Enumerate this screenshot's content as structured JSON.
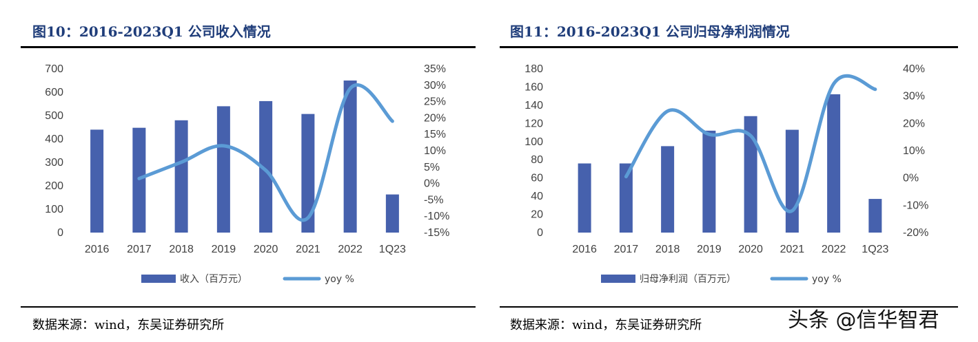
{
  "colors": {
    "bar": "#4661ad",
    "line": "#5b9bd5",
    "title": "#1f3d7a"
  },
  "panels": [
    {
      "title": "图10：2016-2023Q1 公司收入情况",
      "source": "数据来源：wind，东吴证券研究所"
    },
    {
      "title": "图11：2016-2023Q1 公司归母净利润情况",
      "source": "数据来源：wind，东吴证券研究所"
    }
  ],
  "watermark": "头条 @信华智君",
  "chart_data": [
    {
      "type": "bar",
      "categories": [
        "2016",
        "2017",
        "2018",
        "2019",
        "2020",
        "2021",
        "2022",
        "1Q23"
      ],
      "series": [
        {
          "name": "收入（百万元）",
          "type": "bar",
          "axis": "left",
          "values": [
            440,
            448,
            480,
            540,
            562,
            507,
            650,
            163
          ]
        },
        {
          "name": "yoy %",
          "type": "line",
          "axis": "right",
          "values": [
            null,
            1.5,
            6.5,
            11.5,
            4,
            -10.5,
            29,
            19
          ]
        }
      ],
      "left_axis": {
        "min": 0,
        "max": 700,
        "ticks": [
          "0",
          "100",
          "200",
          "300",
          "400",
          "500",
          "600",
          "700"
        ]
      },
      "right_axis": {
        "min": -15,
        "max": 35,
        "ticks": [
          "-15%",
          "-10%",
          "-5%",
          "0%",
          "5%",
          "10%",
          "15%",
          "20%",
          "25%",
          "30%",
          "35%"
        ]
      }
    },
    {
      "type": "bar",
      "categories": [
        "2016",
        "2017",
        "2018",
        "2019",
        "2020",
        "2021",
        "2022",
        "1Q23"
      ],
      "series": [
        {
          "name": "归母净利润（百万元）",
          "type": "bar",
          "axis": "left",
          "values": [
            76,
            76,
            95,
            112,
            128,
            113,
            152,
            37
          ]
        },
        {
          "name": "yoy %",
          "type": "line",
          "axis": "right",
          "values": [
            null,
            0.5,
            24.5,
            16,
            15.5,
            -12,
            34.5,
            32.5
          ]
        }
      ],
      "left_axis": {
        "min": 0,
        "max": 180,
        "ticks": [
          "0",
          "20",
          "40",
          "60",
          "80",
          "100",
          "120",
          "140",
          "160",
          "180"
        ]
      },
      "right_axis": {
        "min": -20,
        "max": 40,
        "ticks": [
          "-20%",
          "-10%",
          "0%",
          "10%",
          "20%",
          "30%",
          "40%"
        ]
      }
    }
  ]
}
